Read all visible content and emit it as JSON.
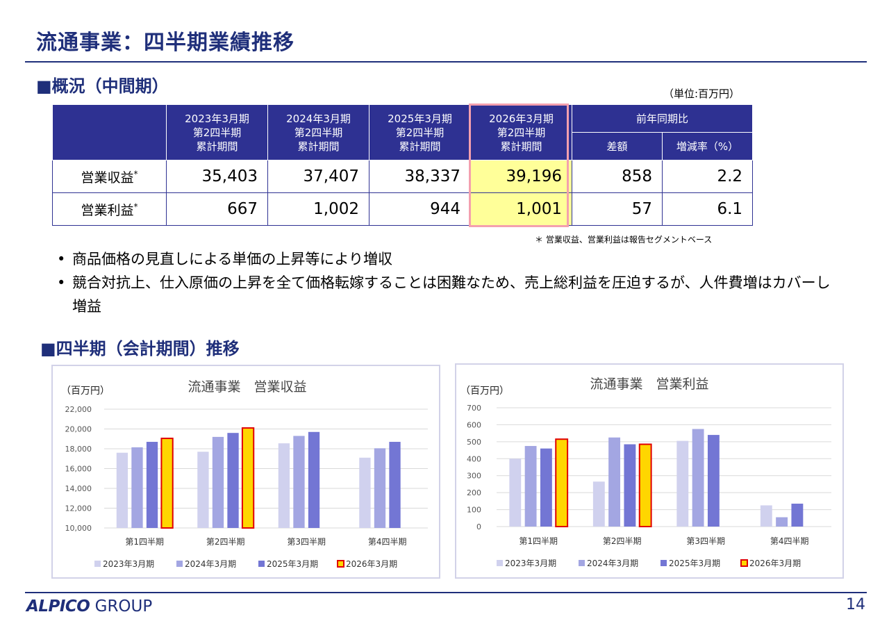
{
  "header": {
    "title": "流通事業：四半期業績推移"
  },
  "overview": {
    "heading": "■概況（中間期）",
    "unit": "（単位:百万円）",
    "columns": [
      {
        "l1": "2023年3月期",
        "l2": "第2四半期",
        "l3": "累計期間"
      },
      {
        "l1": "2024年3月期",
        "l2": "第2四半期",
        "l3": "累計期間"
      },
      {
        "l1": "2025年3月期",
        "l2": "第2四半期",
        "l3": "累計期間"
      },
      {
        "l1": "2026年3月期",
        "l2": "第2四半期",
        "l3": "累計期間"
      }
    ],
    "yoy_header": "前年同期比",
    "diff_header": "差額",
    "rate_header": "増減率（%）",
    "rows": [
      {
        "label": "営業収益",
        "mark": "*",
        "values": [
          "35,403",
          "37,407",
          "38,337",
          "39,196"
        ],
        "diff": "858",
        "rate": "2.2"
      },
      {
        "label": "営業利益",
        "mark": "*",
        "values": [
          "667",
          "1,002",
          "944",
          "1,001"
        ],
        "diff": "57",
        "rate": "6.1"
      }
    ],
    "footnote": "＊ 営業収益、営業利益は報告セグメントベース",
    "bullets": [
      "商品価格の見直しによる単価の上昇等により増収",
      "競合対抗上、仕入原価の上昇を全て価格転嫁することは困難なため、売上総利益を圧迫するが、人件費増はカバーし増益"
    ]
  },
  "quarterly": {
    "heading": "■四半期（会計期間）推移"
  },
  "colors": {
    "navy": "#1f2f7a",
    "table_header": "#2e3192",
    "highlight": "#ffff99",
    "highlight_border": "#f4a0ae",
    "series": [
      "#d0d1ee",
      "#a3a6e2",
      "#7376d4",
      "#ffd600"
    ],
    "highlight_bar_border": "#e00000"
  },
  "chart_data": [
    {
      "type": "bar",
      "title": "流通事業　営業収益",
      "ylabel": "（百万円）",
      "xlabel": "",
      "categories": [
        "第1四半期",
        "第2四半期",
        "第3四半期",
        "第4四半期"
      ],
      "ylim": [
        10000,
        22000
      ],
      "yticks": [
        10000,
        12000,
        14000,
        16000,
        18000,
        20000,
        22000
      ],
      "ytick_labels": [
        "10,000",
        "12,000",
        "14,000",
        "16,000",
        "18,000",
        "20,000",
        "22,000"
      ],
      "grid": true,
      "legend": "bottom",
      "series": [
        {
          "name": "2023年3月期",
          "values": [
            17600,
            17700,
            18550,
            17100
          ]
        },
        {
          "name": "2024年3月期",
          "values": [
            18150,
            19200,
            19300,
            18050
          ]
        },
        {
          "name": "2025年3月期",
          "values": [
            18700,
            19600,
            19700,
            18700
          ]
        },
        {
          "name": "2026年3月期",
          "values": [
            19050,
            20100,
            null,
            null
          ]
        }
      ]
    },
    {
      "type": "bar",
      "title": "流通事業　営業利益",
      "ylabel": "（百万円）",
      "xlabel": "",
      "categories": [
        "第1四半期",
        "第2四半期",
        "第3四半期",
        "第4四半期"
      ],
      "ylim": [
        0,
        700
      ],
      "yticks": [
        0,
        100,
        200,
        300,
        400,
        500,
        600,
        700
      ],
      "ytick_labels": [
        "0",
        "100",
        "200",
        "300",
        "400",
        "500",
        "600",
        "700"
      ],
      "grid": true,
      "legend": "bottom",
      "series": [
        {
          "name": "2023年3月期",
          "values": [
            400,
            265,
            505,
            125
          ]
        },
        {
          "name": "2024年3月期",
          "values": [
            475,
            525,
            575,
            55
          ]
        },
        {
          "name": "2025年3月期",
          "values": [
            460,
            485,
            540,
            135
          ]
        },
        {
          "name": "2026年3月期",
          "values": [
            515,
            485,
            null,
            null
          ]
        }
      ]
    }
  ],
  "footer": {
    "logo_main": "ALPICO",
    "logo_group": " GROUP",
    "page_number": "14"
  }
}
